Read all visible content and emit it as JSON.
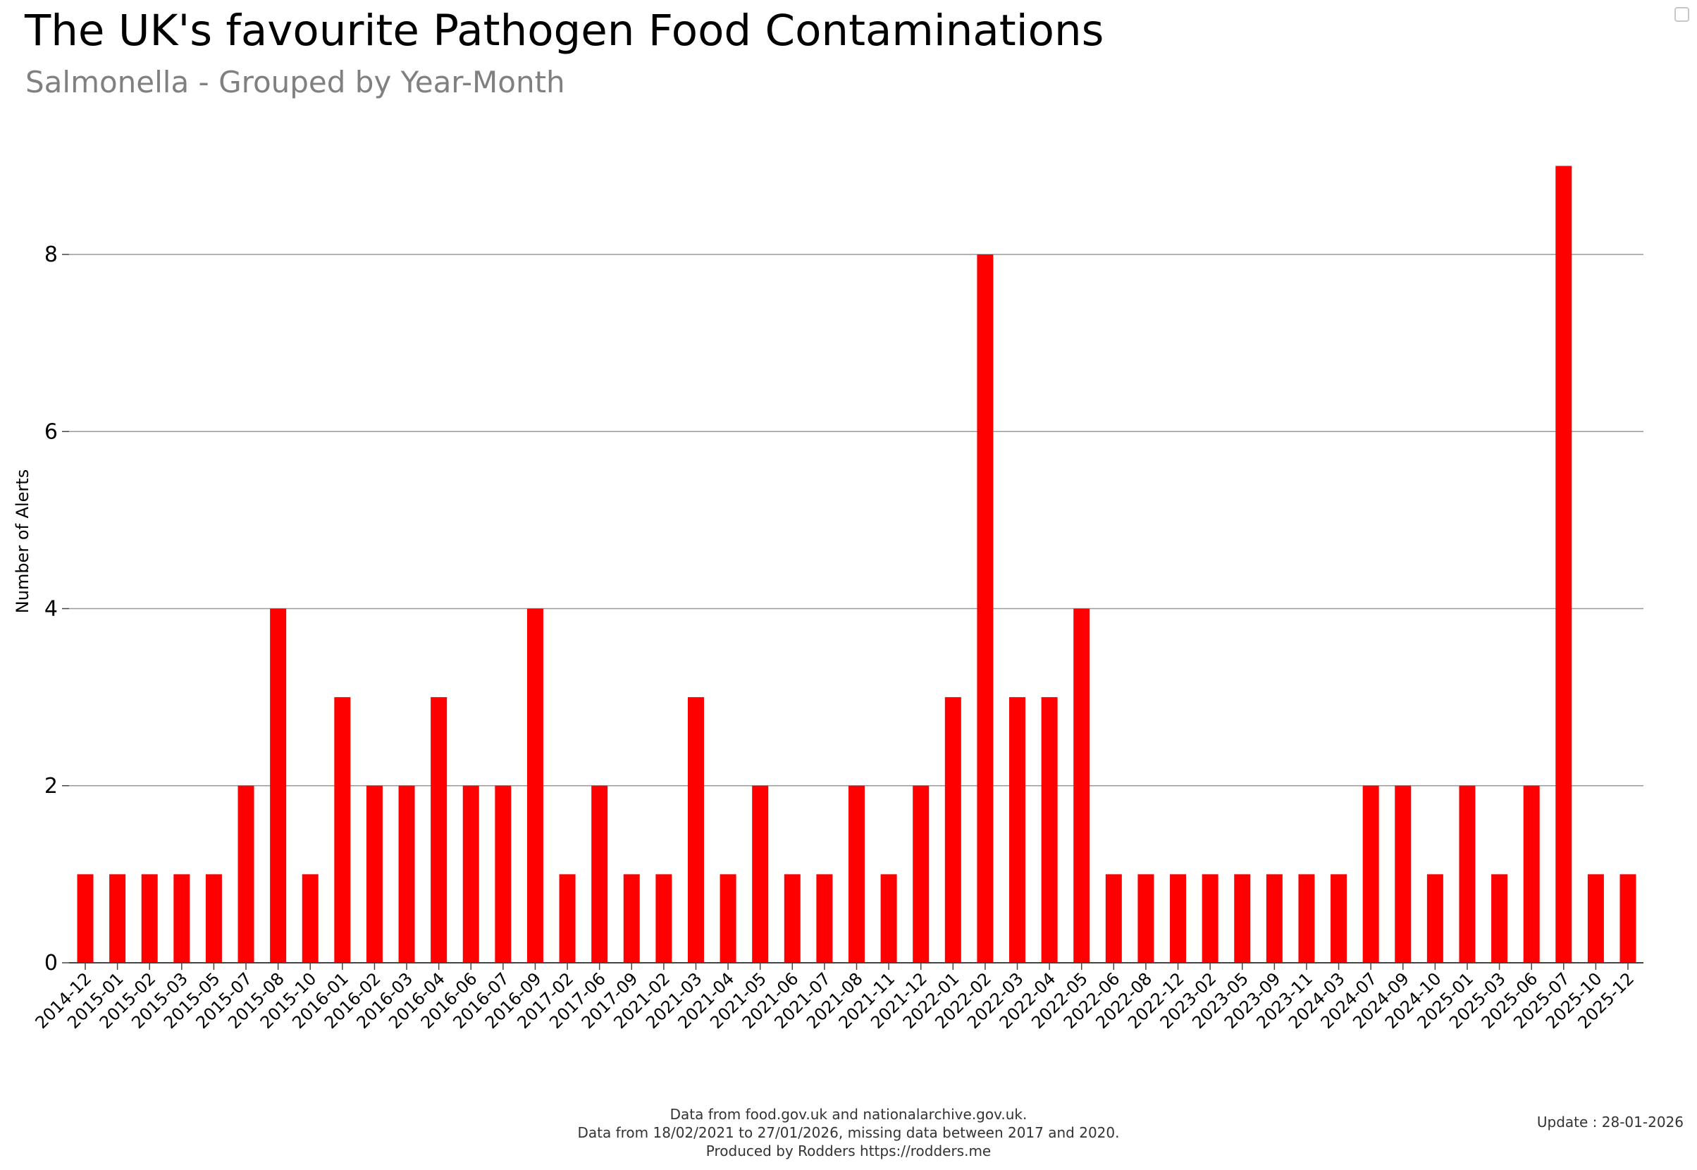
{
  "title": "The UK's favourite Pathogen Food Contaminations",
  "subtitle": "Salmonella - Grouped by Year-Month",
  "footer": {
    "line1": "Data from food.gov.uk and nationalarchive.gov.uk.",
    "line2": "Data from 18/02/2021 to 27/01/2026, missing data between 2017 and 2020.",
    "line3": "Produced by Rodders https://rodders.me",
    "update": "Update : 28-01-2026"
  },
  "colors": {
    "bar": "#ff0000",
    "grid": "#999999",
    "axis": "#444444"
  },
  "chart_data": {
    "type": "bar",
    "title": "The UK's favourite Pathogen Food Contaminations",
    "subtitle": "Salmonella - Grouped by Year-Month",
    "xlabel": "",
    "ylabel": "Number of Alerts",
    "ylim": [
      0,
      9.6
    ],
    "yticks": [
      0,
      2,
      4,
      6,
      8
    ],
    "grid": "horizontal",
    "categories": [
      "2014-12",
      "2015-01",
      "2015-02",
      "2015-03",
      "2015-05",
      "2015-07",
      "2015-08",
      "2015-10",
      "2016-01",
      "2016-02",
      "2016-03",
      "2016-04",
      "2016-06",
      "2016-07",
      "2016-09",
      "2017-02",
      "2017-06",
      "2017-09",
      "2021-02",
      "2021-03",
      "2021-04",
      "2021-05",
      "2021-06",
      "2021-07",
      "2021-08",
      "2021-11",
      "2021-12",
      "2022-01",
      "2022-02",
      "2022-03",
      "2022-04",
      "2022-05",
      "2022-06",
      "2022-08",
      "2022-12",
      "2023-02",
      "2023-05",
      "2023-09",
      "2023-11",
      "2024-03",
      "2024-07",
      "2024-09",
      "2024-10",
      "2025-01",
      "2025-03",
      "2025-06",
      "2025-07",
      "2025-10",
      "2025-12"
    ],
    "values": [
      1,
      1,
      1,
      1,
      1,
      2,
      4,
      1,
      3,
      2,
      2,
      3,
      2,
      2,
      4,
      1,
      2,
      1,
      1,
      3,
      1,
      2,
      1,
      1,
      2,
      1,
      2,
      3,
      8,
      3,
      3,
      4,
      1,
      1,
      1,
      1,
      1,
      1,
      1,
      1,
      2,
      2,
      1,
      2,
      1,
      2,
      9,
      1,
      1
    ]
  }
}
